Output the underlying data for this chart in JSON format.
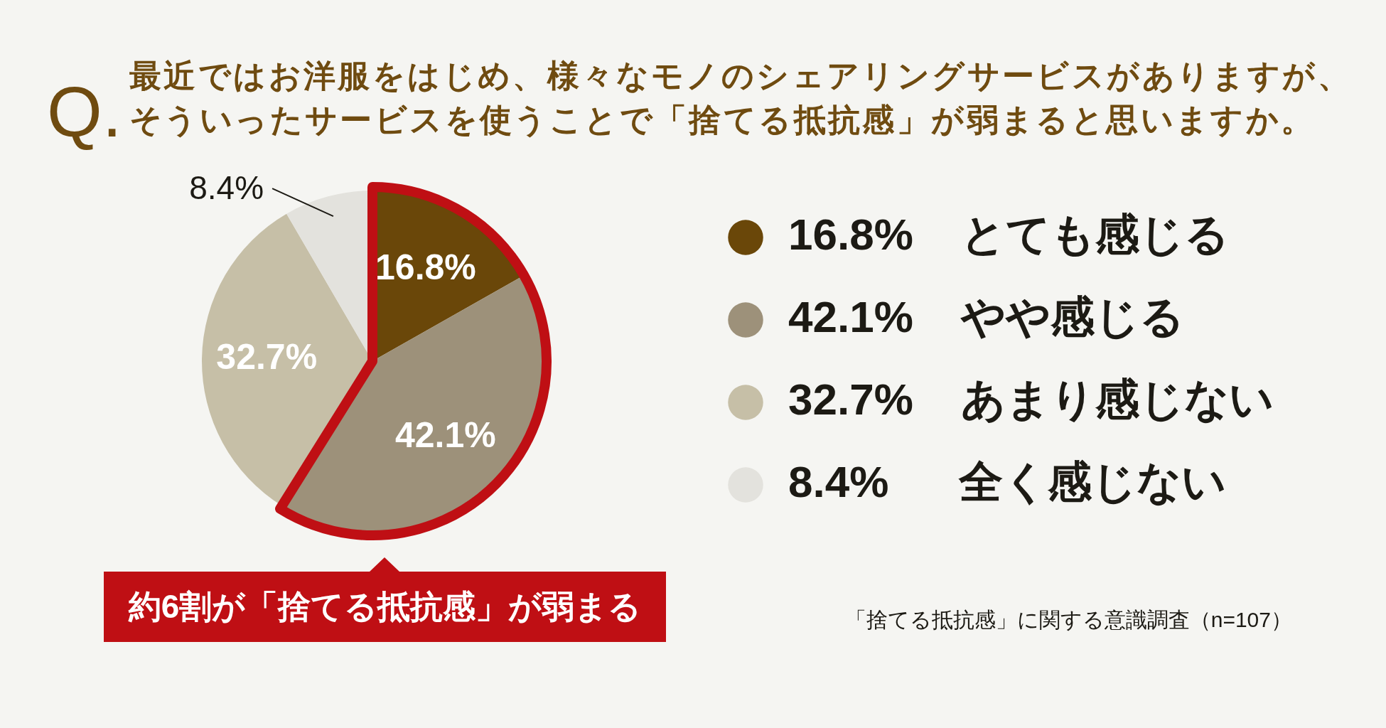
{
  "chart_data": {
    "type": "pie",
    "title": "Q.最近ではお洋服をはじめ、様々なモノのシェアリングサービスがありますが、そういったサービスを使うことで「捨てる抵抗感」が弱まると思いますか。",
    "categories": [
      "とても感じる",
      "やや感じる",
      "あまり感じない",
      "全く感じない"
    ],
    "values": [
      16.8,
      42.1,
      32.7,
      8.4
    ],
    "colors": [
      "#6a4709",
      "#9d917a",
      "#c6bfa7",
      "#e3e2dd"
    ],
    "value_labels": [
      "16.8%",
      "42.1%",
      "32.7%",
      "8.4%"
    ],
    "legend": "right",
    "annotations": [
      "約6割が「捨てる抵抗感」が弱まる",
      "「捨てる抵抗感」に関する意識調査（n=107）"
    ]
  }
}
